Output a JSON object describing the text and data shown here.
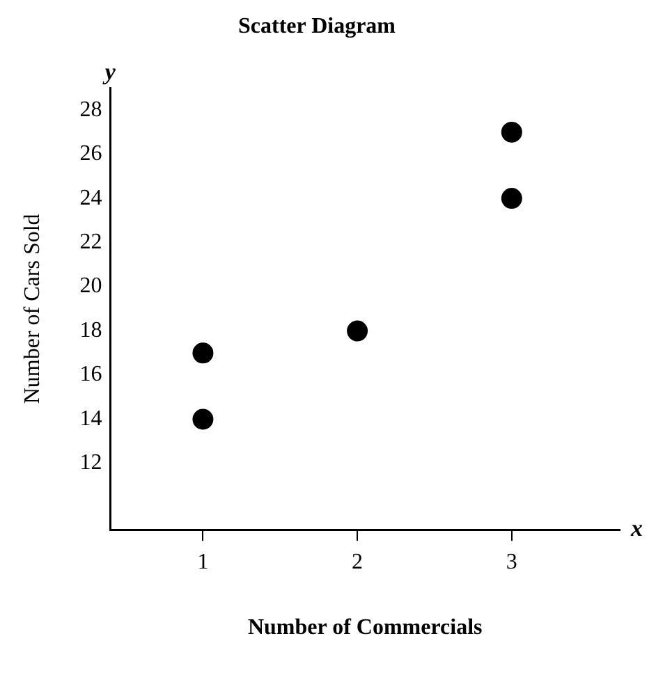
{
  "chart_data": {
    "type": "scatter",
    "title": "Scatter Diagram",
    "xlabel": "Number of Commercials",
    "ylabel": "Number of Cars Sold",
    "x": [
      1,
      1,
      2,
      3,
      3
    ],
    "series": [
      {
        "color": "#000000",
        "values": [
          17,
          14,
          18,
          27,
          24
        ]
      }
    ],
    "xlim": [
      0.4,
      3.7
    ],
    "xticks": [
      1,
      2,
      3
    ],
    "ylim": [
      9,
      29
    ],
    "yticks": [
      12,
      14,
      16,
      18,
      20,
      22,
      24,
      26,
      28
    ],
    "grid": false,
    "legend": false,
    "marker": "circle",
    "annotations": [
      "y",
      "x"
    ]
  }
}
